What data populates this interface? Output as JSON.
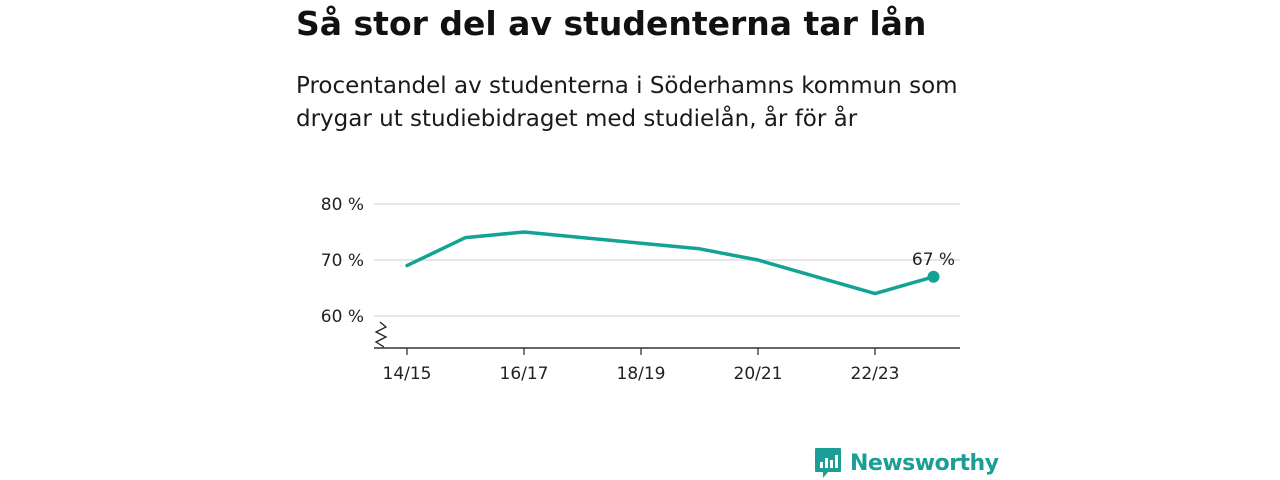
{
  "title": "Så stor del av studenterna tar lån",
  "subtitle": "Procentandel av studenterna i Söderhamns kommun som drygar ut studiebidraget med studielån, år för år",
  "chart_data": {
    "type": "line",
    "x": [
      "14/15",
      "15/16",
      "16/17",
      "17/18",
      "18/19",
      "19/20",
      "20/21",
      "21/22",
      "22/23",
      "23/24"
    ],
    "series": [
      {
        "values": [
          69,
          74,
          75,
          74,
          73,
          72,
          70,
          67,
          64,
          67
        ]
      }
    ],
    "x_tick_labels": [
      "14/15",
      "16/17",
      "18/19",
      "20/21",
      "22/23"
    ],
    "y_ticks": [
      {
        "value": 60,
        "label": "60 %"
      },
      {
        "value": 70,
        "label": "70 %"
      },
      {
        "value": 80,
        "label": "80 %"
      }
    ],
    "ylim": [
      54.5,
      82
    ],
    "y_axis_break": true,
    "grid": true,
    "last_point_label": "67 %",
    "line_color": "#13a396"
  },
  "brand": {
    "name": "Newsworthy",
    "color": "#1b9e96"
  }
}
